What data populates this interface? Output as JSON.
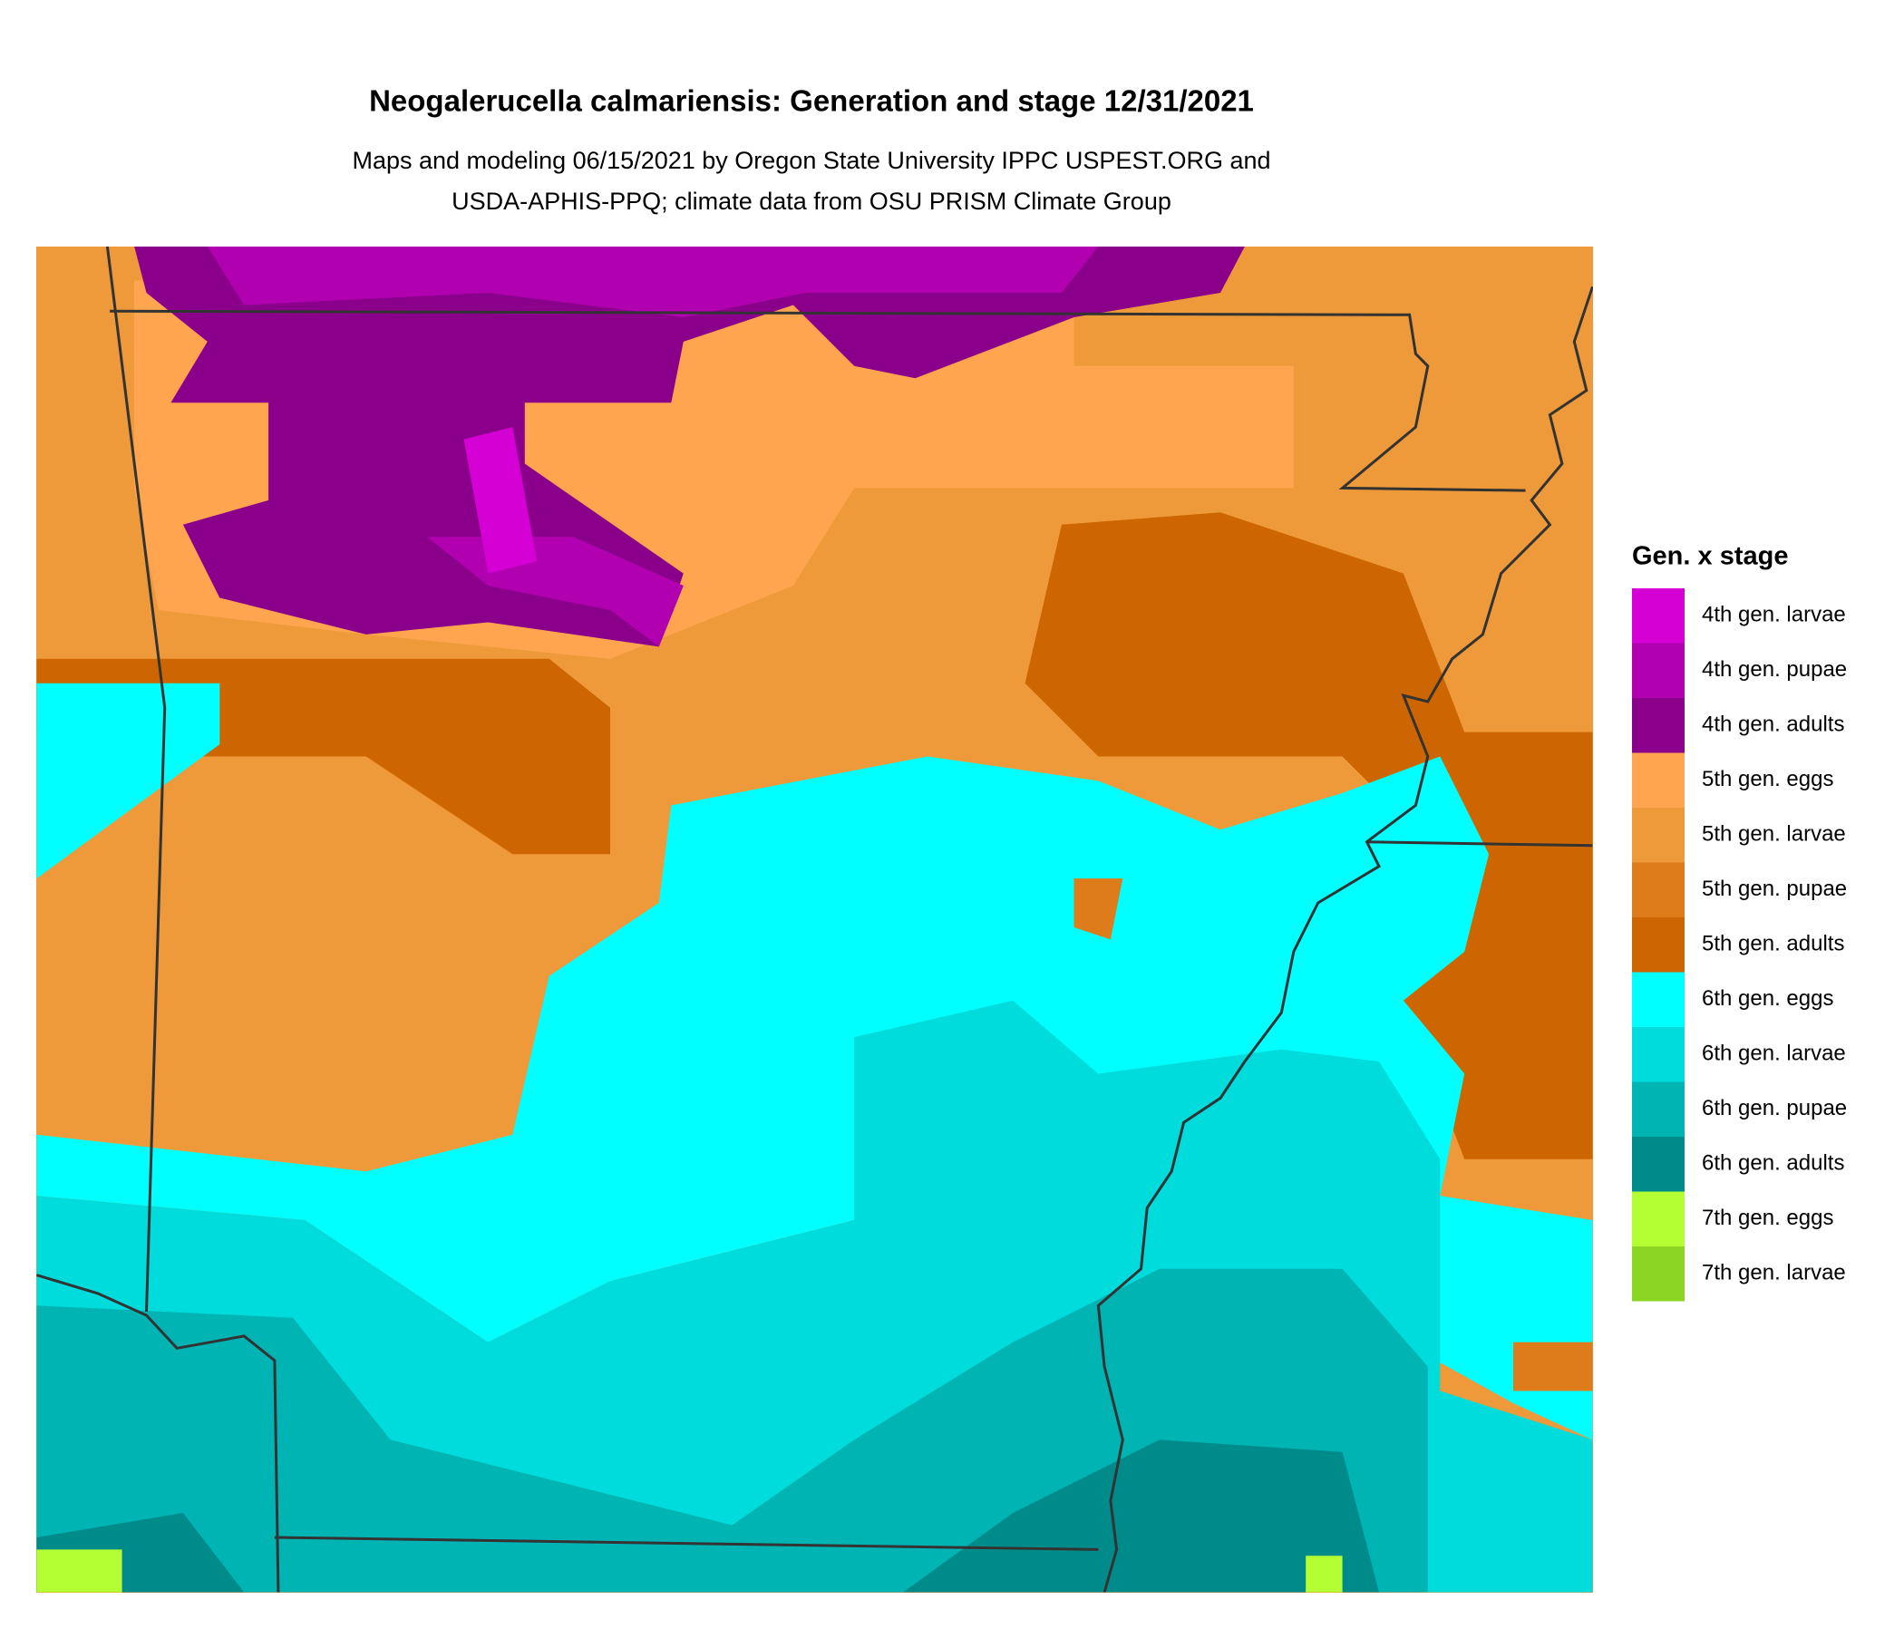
{
  "header": {
    "title": "Neogalerucella calmariensis: Generation and stage 12/31/2021",
    "subtitle_lines": [
      "Maps and modeling 06/15/2021 by Oregon State University IPPC USPEST.ORG and",
      "USDA-APHIS-PPQ; climate data from OSU PRISM Climate Group"
    ]
  },
  "legend": {
    "title": "Gen. x stage",
    "items": [
      {
        "label": "4th gen. larvae",
        "color": "#d400d4"
      },
      {
        "label": "4th gen. pupae",
        "color": "#b000b0"
      },
      {
        "label": "4th gen. adults",
        "color": "#8b008b"
      },
      {
        "label": "5th gen. eggs",
        "color": "#ffa54f"
      },
      {
        "label": "5th gen. larvae",
        "color": "#ee9a3a"
      },
      {
        "label": "5th gen. pupae",
        "color": "#de7c1c"
      },
      {
        "label": "5th gen. adults",
        "color": "#cd6600"
      },
      {
        "label": "6th gen. eggs",
        "color": "#00ffff"
      },
      {
        "label": "6th gen. larvae",
        "color": "#00dcdc"
      },
      {
        "label": "6th gen. pupae",
        "color": "#00b4b4"
      },
      {
        "label": "6th gen. adults",
        "color": "#008b8b"
      },
      {
        "label": "7th gen. eggs",
        "color": "#b3ff33"
      },
      {
        "label": "7th gen. larvae",
        "color": "#8bd623"
      }
    ]
  }
}
